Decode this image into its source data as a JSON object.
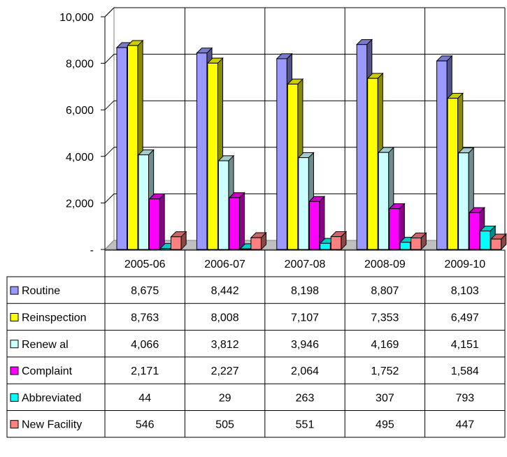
{
  "chart_data": {
    "type": "bar",
    "title": "",
    "xlabel": "",
    "ylabel": "",
    "categories": [
      "2005-06",
      "2006-07",
      "2007-08",
      "2008-09",
      "2009-10"
    ],
    "ylim": [
      0,
      10000
    ],
    "y_ticks": [
      {
        "value": 0,
        "label": "-"
      },
      {
        "value": 2000,
        "label": "2,000"
      },
      {
        "value": 4000,
        "label": "4,000"
      },
      {
        "value": 6000,
        "label": "6,000"
      },
      {
        "value": 8000,
        "label": "8,000"
      },
      {
        "value": 10000,
        "label": "10,000"
      }
    ],
    "grid": true,
    "legend": "data table below chart",
    "series": [
      {
        "name": "Routine",
        "color": "#9999ff",
        "values": [
          8675,
          8442,
          8198,
          8807,
          8103
        ],
        "labels": [
          "8,675",
          "8,442",
          "8,198",
          "8,807",
          "8,103"
        ]
      },
      {
        "name": "Reinspection",
        "color": "#ffff00",
        "values": [
          8763,
          8008,
          7107,
          7353,
          6497
        ],
        "labels": [
          "8,763",
          "8,008",
          "7,107",
          "7,353",
          "6,497"
        ]
      },
      {
        "name": "Renew al",
        "color": "#ccffff",
        "values": [
          4066,
          3812,
          3946,
          4169,
          4151
        ],
        "labels": [
          "4,066",
          "3,812",
          "3,946",
          "4,169",
          "4,151"
        ]
      },
      {
        "name": "Complaint",
        "color": "#ff00ff",
        "values": [
          2171,
          2227,
          2064,
          1752,
          1584
        ],
        "labels": [
          "2,171",
          "2,227",
          "2,064",
          "1,752",
          "1,584"
        ]
      },
      {
        "name": "Abbreviated",
        "color": "#00ffff",
        "values": [
          44,
          29,
          263,
          307,
          793
        ],
        "labels": [
          "44",
          "29",
          "263",
          "307",
          "793"
        ]
      },
      {
        "name": "New Facility",
        "color": "#ff8080",
        "values": [
          546,
          505,
          551,
          495,
          447
        ],
        "labels": [
          "546",
          "505",
          "551",
          "495",
          "447"
        ]
      }
    ]
  }
}
